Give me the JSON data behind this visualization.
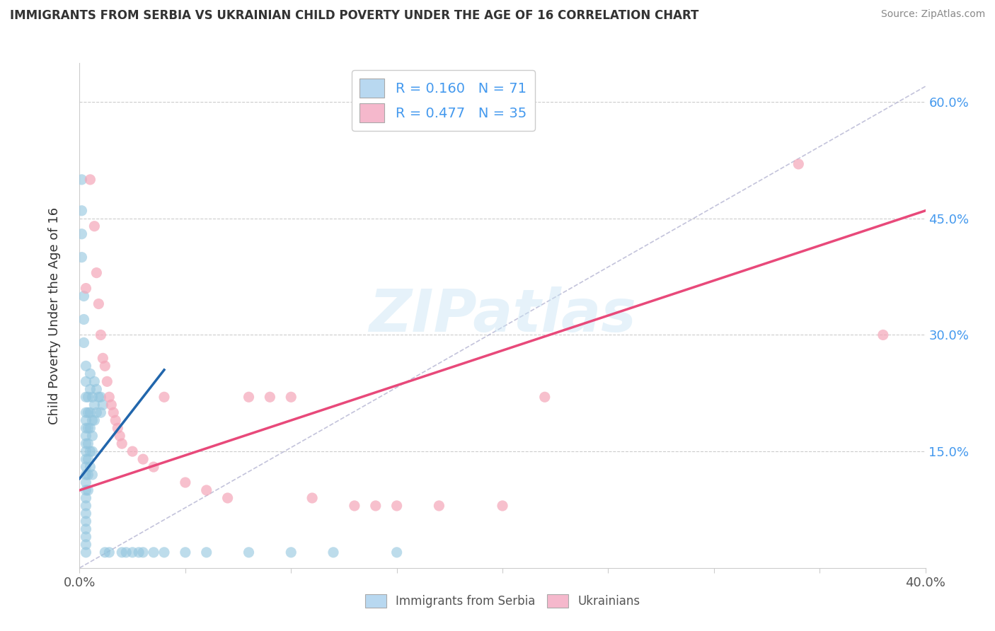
{
  "title": "IMMIGRANTS FROM SERBIA VS UKRAINIAN CHILD POVERTY UNDER THE AGE OF 16 CORRELATION CHART",
  "source": "Source: ZipAtlas.com",
  "ylabel": "Child Poverty Under the Age of 16",
  "watermark": "ZIPatlas",
  "xlim": [
    0.0,
    0.4
  ],
  "ylim": [
    0.0,
    0.65
  ],
  "yticks": [
    0.15,
    0.3,
    0.45,
    0.6
  ],
  "xticks": [
    0.0,
    0.05,
    0.1,
    0.15,
    0.2,
    0.25,
    0.3,
    0.35,
    0.4
  ],
  "serbia_color": "#92c5de",
  "ukraine_color": "#f4a6b8",
  "serbia_line_color": "#2166ac",
  "ukraine_line_color": "#e8497a",
  "bg_color": "#ffffff",
  "grid_color": "#cccccc",
  "dashed_line_color": "#aaaacc",
  "serbia_points": [
    [
      0.001,
      0.5
    ],
    [
      0.001,
      0.46
    ],
    [
      0.001,
      0.43
    ],
    [
      0.001,
      0.4
    ],
    [
      0.002,
      0.35
    ],
    [
      0.002,
      0.32
    ],
    [
      0.002,
      0.29
    ],
    [
      0.003,
      0.26
    ],
    [
      0.003,
      0.24
    ],
    [
      0.003,
      0.22
    ],
    [
      0.003,
      0.2
    ],
    [
      0.003,
      0.19
    ],
    [
      0.003,
      0.18
    ],
    [
      0.003,
      0.17
    ],
    [
      0.003,
      0.16
    ],
    [
      0.003,
      0.15
    ],
    [
      0.003,
      0.14
    ],
    [
      0.003,
      0.13
    ],
    [
      0.003,
      0.12
    ],
    [
      0.003,
      0.11
    ],
    [
      0.003,
      0.1
    ],
    [
      0.003,
      0.09
    ],
    [
      0.003,
      0.08
    ],
    [
      0.003,
      0.07
    ],
    [
      0.003,
      0.06
    ],
    [
      0.003,
      0.05
    ],
    [
      0.003,
      0.04
    ],
    [
      0.003,
      0.03
    ],
    [
      0.003,
      0.02
    ],
    [
      0.004,
      0.22
    ],
    [
      0.004,
      0.2
    ],
    [
      0.004,
      0.18
    ],
    [
      0.004,
      0.16
    ],
    [
      0.004,
      0.14
    ],
    [
      0.004,
      0.12
    ],
    [
      0.004,
      0.1
    ],
    [
      0.005,
      0.25
    ],
    [
      0.005,
      0.23
    ],
    [
      0.005,
      0.2
    ],
    [
      0.005,
      0.18
    ],
    [
      0.005,
      0.15
    ],
    [
      0.005,
      0.13
    ],
    [
      0.006,
      0.22
    ],
    [
      0.006,
      0.19
    ],
    [
      0.006,
      0.17
    ],
    [
      0.006,
      0.15
    ],
    [
      0.006,
      0.12
    ],
    [
      0.007,
      0.24
    ],
    [
      0.007,
      0.21
    ],
    [
      0.007,
      0.19
    ],
    [
      0.008,
      0.23
    ],
    [
      0.008,
      0.2
    ],
    [
      0.009,
      0.22
    ],
    [
      0.01,
      0.22
    ],
    [
      0.01,
      0.2
    ],
    [
      0.011,
      0.21
    ],
    [
      0.012,
      0.02
    ],
    [
      0.014,
      0.02
    ],
    [
      0.02,
      0.02
    ],
    [
      0.022,
      0.02
    ],
    [
      0.025,
      0.02
    ],
    [
      0.028,
      0.02
    ],
    [
      0.03,
      0.02
    ],
    [
      0.035,
      0.02
    ],
    [
      0.04,
      0.02
    ],
    [
      0.05,
      0.02
    ],
    [
      0.06,
      0.02
    ],
    [
      0.08,
      0.02
    ],
    [
      0.1,
      0.02
    ],
    [
      0.12,
      0.02
    ],
    [
      0.15,
      0.02
    ]
  ],
  "ukraine_points": [
    [
      0.003,
      0.36
    ],
    [
      0.005,
      0.5
    ],
    [
      0.007,
      0.44
    ],
    [
      0.008,
      0.38
    ],
    [
      0.009,
      0.34
    ],
    [
      0.01,
      0.3
    ],
    [
      0.011,
      0.27
    ],
    [
      0.012,
      0.26
    ],
    [
      0.013,
      0.24
    ],
    [
      0.014,
      0.22
    ],
    [
      0.015,
      0.21
    ],
    [
      0.016,
      0.2
    ],
    [
      0.017,
      0.19
    ],
    [
      0.018,
      0.18
    ],
    [
      0.019,
      0.17
    ],
    [
      0.02,
      0.16
    ],
    [
      0.025,
      0.15
    ],
    [
      0.03,
      0.14
    ],
    [
      0.035,
      0.13
    ],
    [
      0.04,
      0.22
    ],
    [
      0.05,
      0.11
    ],
    [
      0.06,
      0.1
    ],
    [
      0.07,
      0.09
    ],
    [
      0.08,
      0.22
    ],
    [
      0.09,
      0.22
    ],
    [
      0.1,
      0.22
    ],
    [
      0.11,
      0.09
    ],
    [
      0.13,
      0.08
    ],
    [
      0.14,
      0.08
    ],
    [
      0.15,
      0.08
    ],
    [
      0.17,
      0.08
    ],
    [
      0.2,
      0.08
    ],
    [
      0.22,
      0.22
    ],
    [
      0.34,
      0.52
    ],
    [
      0.38,
      0.3
    ]
  ],
  "serbia_line": {
    "x0": 0.0,
    "y0": 0.115,
    "x1": 0.04,
    "y1": 0.255
  },
  "ukraine_line": {
    "x0": 0.0,
    "y0": 0.1,
    "x1": 0.4,
    "y1": 0.46
  }
}
